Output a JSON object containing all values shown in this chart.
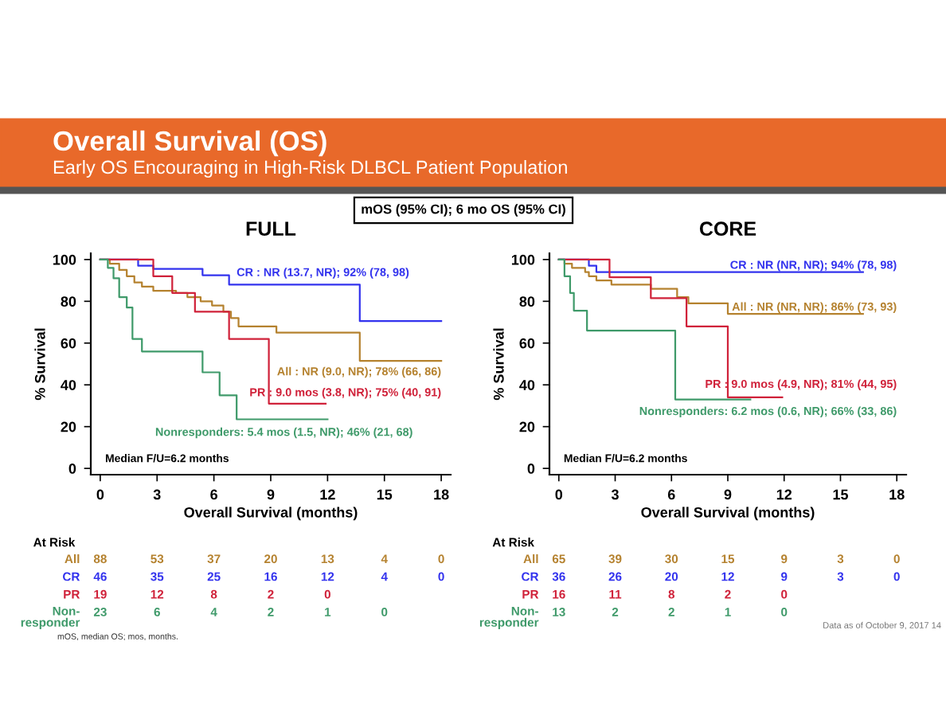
{
  "chart_data": [
    {
      "type": "step",
      "title": "FULL",
      "xlabel": "Overall Survival (months)",
      "ylabel": "% Survival",
      "xlim": [
        -0.5,
        18.5
      ],
      "ylim": [
        -3,
        103
      ],
      "xticks": [
        0,
        3,
        6,
        9,
        12,
        15,
        18
      ],
      "yticks": [
        0,
        20,
        40,
        60,
        80,
        100
      ],
      "grid": false,
      "legend": false,
      "marker": "none",
      "line_style": "solid",
      "series": [
        {
          "name": "All : NR (9.0, NR); 78% (66, 86)",
          "color": "#b5822f",
          "x": [
            0,
            0.5,
            1.0,
            1.4,
            1.8,
            2.2,
            2.8,
            4.0,
            4.6,
            5.3,
            5.9,
            6.5,
            6.9,
            7.3,
            9.3,
            13.7,
            18
          ],
          "values": [
            100,
            98,
            95,
            92,
            89,
            87,
            85,
            84,
            82,
            80,
            78,
            75,
            72,
            68,
            65,
            51.5,
            51.5
          ]
        },
        {
          "name": "CR : NR (13.7, NR); 92% (78, 98)",
          "color": "#3333ee",
          "x": [
            0,
            2.0,
            2.8,
            5.4,
            6.8,
            13.7,
            18
          ],
          "values": [
            100,
            97,
            95.5,
            92.5,
            88,
            70.5,
            70.5
          ]
        },
        {
          "name": "PR : 9.0 mos (3.8, NR); 75% (40, 91)",
          "color": "#d0223a",
          "x": [
            0,
            2.8,
            3.8,
            5.0,
            6.8,
            8.9,
            11.9
          ],
          "values": [
            100,
            92,
            84,
            75,
            62,
            31,
            31
          ]
        },
        {
          "name": "Nonresponders: 5.4 mos (1.5, NR); 46% (21, 68)",
          "color": "#3f9a6a",
          "x": [
            0,
            0.4,
            0.7,
            1.0,
            1.4,
            1.7,
            2.2,
            5.4,
            6.3,
            7.2,
            12.0
          ],
          "values": [
            100,
            96,
            91,
            82,
            77,
            62,
            56,
            46,
            35,
            23.5,
            23.5
          ]
        }
      ],
      "annotations": [
        "Median F/U=6.2 months",
        "At Risk",
        "All\t88\t53\t37\t20\t13\t4\t0",
        "CR\t46\t35\t25\t16\t12\t4\t0",
        "PR\t19\t12\t8\t2\t0",
        "Non-\nresponder\t23\t6\t4\t2\t1\t0",
        "Overall Survival (OS)",
        "Early OS Encouraging in High-Risk DLBCL Patient Population",
        "mOS (95% CI); 6 mo OS (95% CI)",
        "mOS, median OS; mos, months."
      ]
    },
    {
      "type": "step",
      "title": "CORE",
      "xlabel": "Overall Survival (months)",
      "ylabel": "% Survival",
      "xlim": [
        -0.5,
        18.5
      ],
      "ylim": [
        -3,
        103
      ],
      "xticks": [
        0,
        3,
        6,
        9,
        12,
        15,
        18
      ],
      "yticks": [
        0,
        20,
        40,
        60,
        80,
        100
      ],
      "grid": false,
      "legend": false,
      "marker": "none",
      "line_style": "solid",
      "series": [
        {
          "name": "All : NR (NR, NR); 86% (73, 93)",
          "color": "#b5822f",
          "x": [
            0,
            0.3,
            0.7,
            1.4,
            1.6,
            2.0,
            2.8,
            4.9,
            6.3,
            6.9,
            9.0,
            16.2
          ],
          "values": [
            100,
            98,
            96,
            94,
            92,
            90,
            88,
            86,
            82,
            79,
            74,
            74
          ]
        },
        {
          "name": "CR : NR (NR, NR); 94% (78, 98)",
          "color": "#3333ee",
          "x": [
            0,
            1.6,
            2.0,
            16.2
          ],
          "values": [
            100,
            97,
            94,
            94
          ]
        },
        {
          "name": "PR : 9.0 mos (4.9, NR); 81% (44, 95)",
          "color": "#d0223a",
          "x": [
            0,
            2.7,
            4.9,
            6.8,
            9.0,
            11.9
          ],
          "values": [
            100,
            91.5,
            81.5,
            68,
            34,
            34
          ]
        },
        {
          "name": "Nonresponders: 6.2 mos (0.6, NR); 66% (33, 86)",
          "color": "#3f9a6a",
          "x": [
            0,
            0.3,
            0.6,
            0.8,
            1.5,
            6.2,
            10.2
          ],
          "values": [
            100,
            92,
            84,
            75.5,
            66,
            33,
            33
          ]
        }
      ],
      "annotations": [
        "Median F/U=6.2 months",
        "At Risk",
        "All\t65\t39\t30\t15\t9\t3\t0",
        "CR\t36\t26\t20\t12\t9\t3\t0",
        "PR\t16\t11\t8\t2\t0",
        "Non-\nresponder\t13\t2\t2\t1\t0",
        "Data as of October 9, 2017 14"
      ]
    }
  ]
}
